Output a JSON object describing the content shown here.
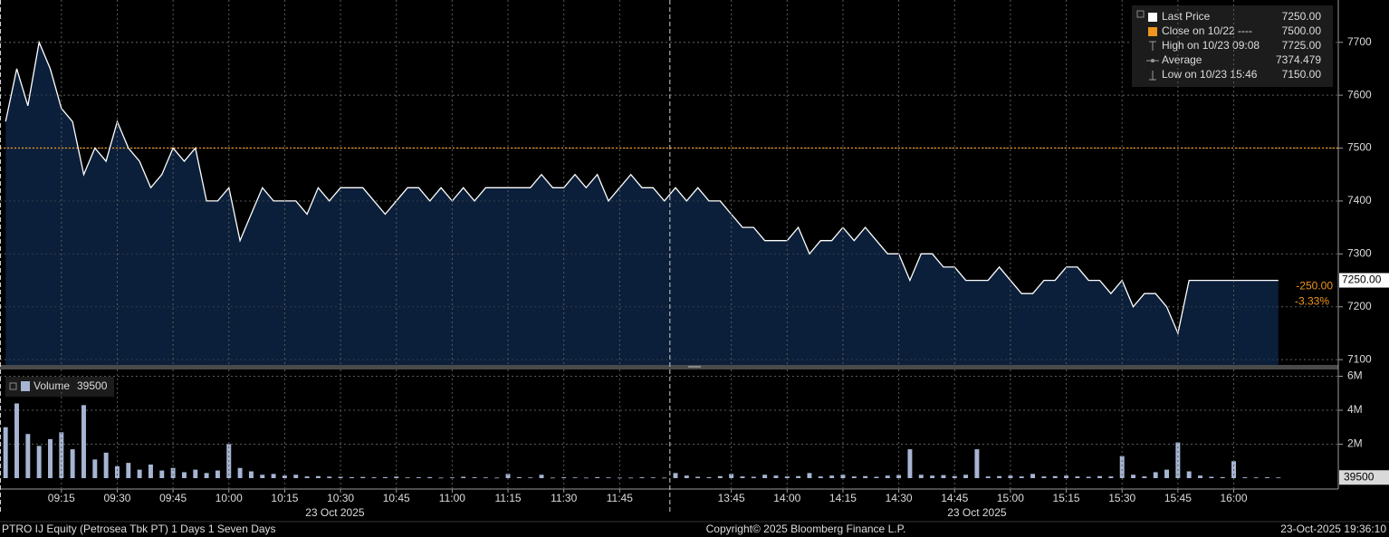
{
  "chart_data": [
    {
      "type": "area",
      "x": [
        "09:00",
        "09:03",
        "09:06",
        "09:09",
        "09:12",
        "09:15",
        "09:18",
        "09:21",
        "09:24",
        "09:27",
        "09:30",
        "09:33",
        "09:36",
        "09:39",
        "09:42",
        "09:45",
        "09:48",
        "09:51",
        "09:54",
        "09:57",
        "10:00",
        "10:03",
        "10:06",
        "10:09",
        "10:12",
        "10:15",
        "10:18",
        "10:21",
        "10:24",
        "10:27",
        "10:30",
        "10:33",
        "10:36",
        "10:39",
        "10:42",
        "10:45",
        "10:48",
        "10:51",
        "10:54",
        "10:57",
        "11:00",
        "11:03",
        "11:06",
        "11:09",
        "11:12",
        "11:15",
        "11:18",
        "11:21",
        "11:24",
        "11:27",
        "11:30",
        "11:33",
        "11:36",
        "11:39",
        "11:42",
        "11:45",
        "11:48",
        "11:51",
        "11:54",
        "11:57",
        "13:30",
        "13:33",
        "13:36",
        "13:39",
        "13:42",
        "13:45",
        "13:48",
        "13:51",
        "13:54",
        "13:57",
        "14:00",
        "14:03",
        "14:06",
        "14:09",
        "14:12",
        "14:15",
        "14:18",
        "14:21",
        "14:24",
        "14:27",
        "14:30",
        "14:33",
        "14:36",
        "14:39",
        "14:42",
        "14:45",
        "14:48",
        "14:51",
        "14:54",
        "14:57",
        "15:00",
        "15:03",
        "15:06",
        "15:09",
        "15:12",
        "15:15",
        "15:18",
        "15:21",
        "15:24",
        "15:27",
        "15:30",
        "15:33",
        "15:36",
        "15:39",
        "15:42",
        "15:45",
        "15:48",
        "15:51",
        "15:54",
        "15:57",
        "16:00",
        "16:03",
        "16:06",
        "16:09",
        "16:12"
      ],
      "values": [
        7550,
        7650,
        7580,
        7700,
        7650,
        7575,
        7550,
        7450,
        7500,
        7475,
        7550,
        7500,
        7475,
        7425,
        7450,
        7500,
        7475,
        7500,
        7400,
        7400,
        7425,
        7325,
        7375,
        7425,
        7400,
        7400,
        7400,
        7375,
        7425,
        7400,
        7425,
        7425,
        7425,
        7400,
        7375,
        7400,
        7425,
        7425,
        7400,
        7425,
        7400,
        7425,
        7400,
        7425,
        7425,
        7425,
        7425,
        7425,
        7450,
        7425,
        7425,
        7450,
        7425,
        7450,
        7400,
        7425,
        7450,
        7425,
        7425,
        7400,
        7425,
        7400,
        7425,
        7400,
        7400,
        7375,
        7350,
        7350,
        7325,
        7325,
        7325,
        7350,
        7300,
        7325,
        7325,
        7350,
        7325,
        7350,
        7325,
        7300,
        7300,
        7250,
        7300,
        7300,
        7275,
        7275,
        7250,
        7250,
        7250,
        7275,
        7250,
        7225,
        7225,
        7250,
        7250,
        7275,
        7275,
        7250,
        7250,
        7225,
        7250,
        7200,
        7225,
        7225,
        7200,
        7150,
        7250,
        7250,
        7250,
        7250,
        7250,
        7250,
        7250,
        7250,
        7250
      ],
      "color": "#ffffff",
      "fill": "#0b1f3a",
      "ylim": [
        7090,
        7780
      ],
      "yticks": [
        7100,
        7200,
        7300,
        7400,
        7500,
        7600,
        7700
      ],
      "xticks": [
        "09:15",
        "09:30",
        "09:45",
        "10:00",
        "10:15",
        "10:30",
        "10:45",
        "11:00",
        "11:15",
        "11:30",
        "11:45",
        "13:45",
        "14:00",
        "14:15",
        "14:30",
        "14:45",
        "15:00",
        "15:15",
        "15:30",
        "15:45",
        "16:00"
      ],
      "date_labels": [
        "23 Oct 2025",
        "23 Oct 2025"
      ],
      "grid": true,
      "reference_line": {
        "value": 7500,
        "color": "#f0961e"
      },
      "last_price_tag": "7250.00",
      "change": "-250.00",
      "change_pct": "-3.33%",
      "legend": [
        {
          "name": "Last Price",
          "value": "7250.00",
          "marker": "square",
          "color": "#ffffff"
        },
        {
          "name": "Close on 10/22 ----",
          "value": "7500.00",
          "marker": "square",
          "color": "#f0961e"
        },
        {
          "name": "High on 10/23 09:08",
          "value": "7725.00",
          "marker": "high",
          "color": "#9a9a9a"
        },
        {
          "name": "Average",
          "value": "7374.479",
          "marker": "average",
          "color": "#9a9a9a"
        },
        {
          "name": "Low on 10/23 15:46",
          "value": "7150.00",
          "marker": "low",
          "color": "#9a9a9a"
        }
      ]
    },
    {
      "type": "bar",
      "x": [
        "09:00",
        "09:03",
        "09:06",
        "09:09",
        "09:12",
        "09:15",
        "09:18",
        "09:21",
        "09:24",
        "09:27",
        "09:30",
        "09:33",
        "09:36",
        "09:39",
        "09:42",
        "09:45",
        "09:48",
        "09:51",
        "09:54",
        "09:57",
        "10:00",
        "10:03",
        "10:06",
        "10:09",
        "10:12",
        "10:15",
        "10:18",
        "10:21",
        "10:24",
        "10:27",
        "10:30",
        "10:33",
        "10:36",
        "10:39",
        "10:42",
        "10:45",
        "10:48",
        "10:51",
        "10:54",
        "10:57",
        "11:00",
        "11:03",
        "11:06",
        "11:09",
        "11:12",
        "11:15",
        "11:18",
        "11:21",
        "11:24",
        "11:27",
        "11:30",
        "11:33",
        "11:36",
        "11:39",
        "11:42",
        "11:45",
        "11:48",
        "11:51",
        "11:54",
        "11:57",
        "13:30",
        "13:33",
        "13:36",
        "13:39",
        "13:42",
        "13:45",
        "13:48",
        "13:51",
        "13:54",
        "13:57",
        "14:00",
        "14:03",
        "14:06",
        "14:09",
        "14:12",
        "14:15",
        "14:18",
        "14:21",
        "14:24",
        "14:27",
        "14:30",
        "14:33",
        "14:36",
        "14:39",
        "14:42",
        "14:45",
        "14:48",
        "14:51",
        "14:54",
        "14:57",
        "15:00",
        "15:03",
        "15:06",
        "15:09",
        "15:12",
        "15:15",
        "15:18",
        "15:21",
        "15:24",
        "15:27",
        "15:30",
        "15:33",
        "15:36",
        "15:39",
        "15:42",
        "15:45",
        "15:48",
        "15:51",
        "15:54",
        "15:57",
        "16:00",
        "16:03",
        "16:06",
        "16:09",
        "16:12"
      ],
      "values": [
        3000000,
        4400000,
        2600000,
        1900000,
        2300000,
        2700000,
        1700000,
        4300000,
        1100000,
        1500000,
        700000,
        900000,
        500000,
        800000,
        450000,
        600000,
        350000,
        500000,
        300000,
        450000,
        2000000,
        600000,
        400000,
        200000,
        250000,
        150000,
        200000,
        100000,
        120000,
        90000,
        80000,
        60000,
        70000,
        50000,
        60000,
        90000,
        40000,
        50000,
        60000,
        30000,
        40000,
        80000,
        50000,
        40000,
        30000,
        250000,
        60000,
        40000,
        200000,
        30000,
        50000,
        40000,
        30000,
        60000,
        40000,
        30000,
        30000,
        50000,
        40000,
        30000,
        300000,
        150000,
        80000,
        60000,
        120000,
        250000,
        100000,
        80000,
        200000,
        150000,
        100000,
        120000,
        300000,
        100000,
        150000,
        200000,
        100000,
        120000,
        80000,
        150000,
        180000,
        1700000,
        200000,
        150000,
        180000,
        120000,
        200000,
        1700000,
        100000,
        120000,
        150000,
        100000,
        250000,
        100000,
        120000,
        150000,
        100000,
        80000,
        120000,
        100000,
        1300000,
        200000,
        100000,
        350000,
        500000,
        2100000,
        400000,
        150000,
        80000,
        60000,
        1000000,
        50000,
        40000,
        50000,
        39500
      ],
      "color": "#a7b5d3",
      "ylim": [
        0,
        6400000
      ],
      "yticks": [
        {
          "value": 2000000,
          "label": "2M"
        },
        {
          "value": 4000000,
          "label": "4M"
        },
        {
          "value": 6000000,
          "label": "6M"
        }
      ],
      "grid": true,
      "legend": {
        "name": "Volume",
        "value": "39500",
        "color": "#a7b5d3"
      }
    }
  ],
  "footer": {
    "left": "PTRO IJ Equity (Petrosea Tbk PT) 1 Days 1 Seven Days",
    "center": "Copyright© 2025 Bloomberg Finance L.P.",
    "right": "23-Oct-2025 19:36:10"
  }
}
